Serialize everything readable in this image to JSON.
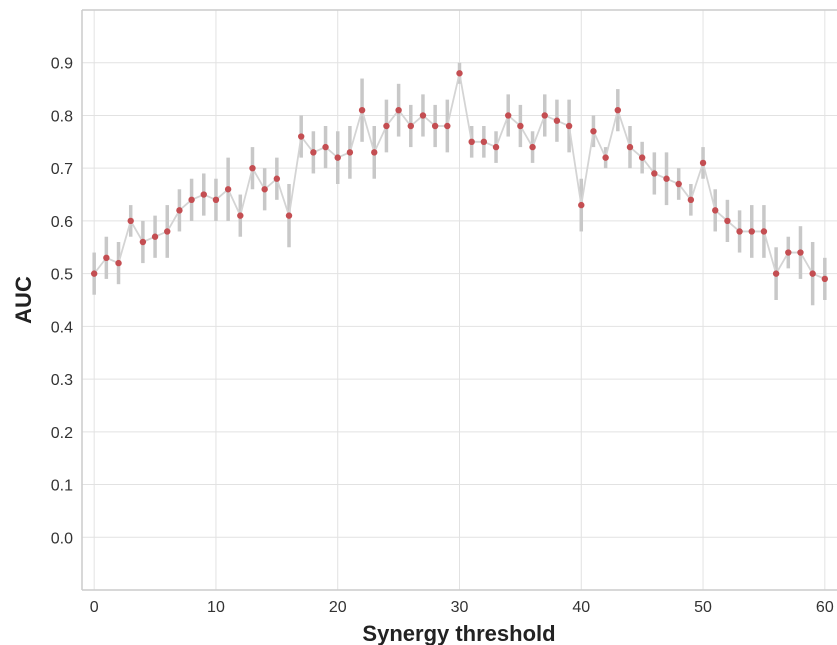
{
  "chart_data": {
    "type": "scatter",
    "title": "",
    "xlabel": "Synergy threshold",
    "ylabel": "AUC",
    "xlim": [
      -1,
      61
    ],
    "ylim": [
      -0.1,
      1.0
    ],
    "xticks": [
      0,
      10,
      20,
      30,
      40,
      50,
      60
    ],
    "yticks": [
      0.0,
      0.1,
      0.2,
      0.3,
      0.4,
      0.5,
      0.6,
      0.7,
      0.8,
      0.9
    ],
    "ytick_labels": [
      "0.0",
      "0.1",
      "0.2",
      "0.3",
      "0.4",
      "0.5",
      "0.6",
      "0.7",
      "0.8",
      "0.9"
    ],
    "grid": true,
    "connecting_line": true,
    "colors": {
      "point": "#c44e52",
      "line": "#d4d4d4",
      "errorbar": "#c8c8c8",
      "grid": "#e2e2e2",
      "frame": "#cccccc"
    },
    "x": [
      0,
      1,
      2,
      3,
      4,
      5,
      6,
      7,
      8,
      9,
      10,
      11,
      12,
      13,
      14,
      15,
      16,
      17,
      18,
      19,
      20,
      21,
      22,
      23,
      24,
      25,
      26,
      27,
      28,
      29,
      30,
      31,
      32,
      33,
      34,
      35,
      36,
      37,
      38,
      39,
      40,
      41,
      42,
      43,
      44,
      45,
      46,
      47,
      48,
      49,
      50,
      51,
      52,
      53,
      54,
      55,
      56,
      57,
      58,
      59,
      60
    ],
    "y": [
      0.5,
      0.53,
      0.52,
      0.6,
      0.56,
      0.57,
      0.58,
      0.62,
      0.64,
      0.65,
      0.64,
      0.66,
      0.61,
      0.7,
      0.66,
      0.68,
      0.61,
      0.76,
      0.73,
      0.74,
      0.72,
      0.73,
      0.81,
      0.73,
      0.78,
      0.81,
      0.78,
      0.8,
      0.78,
      0.78,
      0.88,
      0.75,
      0.75,
      0.74,
      0.8,
      0.78,
      0.74,
      0.8,
      0.79,
      0.78,
      0.63,
      0.77,
      0.72,
      0.81,
      0.74,
      0.72,
      0.69,
      0.68,
      0.67,
      0.64,
      0.71,
      0.62,
      0.6,
      0.58,
      0.58,
      0.58,
      0.5,
      0.54,
      0.54,
      0.5,
      0.49
    ],
    "yerr": [
      0.04,
      0.04,
      0.04,
      0.03,
      0.04,
      0.04,
      0.05,
      0.04,
      0.04,
      0.04,
      0.04,
      0.06,
      0.04,
      0.04,
      0.04,
      0.04,
      0.06,
      0.04,
      0.04,
      0.04,
      0.05,
      0.05,
      0.06,
      0.05,
      0.05,
      0.05,
      0.04,
      0.04,
      0.04,
      0.05,
      0.02,
      0.03,
      0.03,
      0.03,
      0.04,
      0.04,
      0.03,
      0.04,
      0.04,
      0.05,
      0.05,
      0.03,
      0.02,
      0.04,
      0.04,
      0.03,
      0.04,
      0.05,
      0.03,
      0.03,
      0.03,
      0.04,
      0.04,
      0.04,
      0.05,
      0.05,
      0.05,
      0.03,
      0.05,
      0.06,
      0.04
    ]
  }
}
